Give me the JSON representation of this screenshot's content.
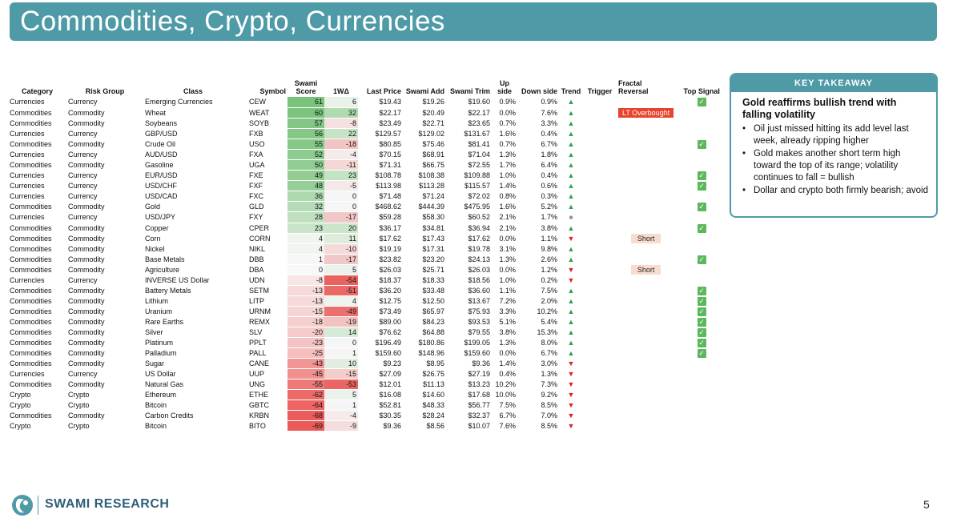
{
  "title": "Commodities, Crypto, Currencies",
  "columns": {
    "category": "Category",
    "risk_group": "Risk Group",
    "class": "Class",
    "symbol": "Symbol",
    "swami_score_1": "Swami",
    "swami_score_2": "Score",
    "delta": "1WΔ",
    "last_price": "Last Price",
    "swami_add": "Swami Add",
    "swami_trim": "Swami Trim",
    "up_side": "Up side",
    "down_side": "Down side",
    "trend": "Trend",
    "trigger": "Trigger",
    "fractal_1": "Fractal",
    "fractal_2": "Reversal",
    "top_signal": "Top Signal"
  },
  "rows": [
    {
      "category": "Currencies",
      "risk": "Currency",
      "cls": "Emerging Currencies",
      "sym": "CEW",
      "score": "61",
      "delta": "6",
      "last": "$19.43",
      "add": "$19.26",
      "trim": "$19.60",
      "up": "0.9%",
      "down": "0.9%",
      "trend": "up",
      "trigger": "",
      "fractal": "",
      "top": true
    },
    {
      "category": "Commodities",
      "risk": "Commodity",
      "cls": "Wheat",
      "sym": "WEAT",
      "score": "60",
      "delta": "32",
      "last": "$22.17",
      "add": "$20.49",
      "trim": "$22.17",
      "up": "0.0%",
      "down": "7.6%",
      "trend": "up",
      "trigger": "",
      "fractal": "LT Overbought",
      "top": false
    },
    {
      "category": "Commodities",
      "risk": "Commodity",
      "cls": "Soybeans",
      "sym": "SOYB",
      "score": "57",
      "delta": "-8",
      "last": "$23.49",
      "add": "$22.71",
      "trim": "$23.65",
      "up": "0.7%",
      "down": "3.3%",
      "trend": "up",
      "trigger": "",
      "fractal": "",
      "top": false
    },
    {
      "category": "Currencies",
      "risk": "Currency",
      "cls": "GBP/USD",
      "sym": "FXB",
      "score": "56",
      "delta": "22",
      "last": "$129.57",
      "add": "$129.02",
      "trim": "$131.67",
      "up": "1.6%",
      "down": "0.4%",
      "trend": "up",
      "trigger": "",
      "fractal": "",
      "top": false
    },
    {
      "category": "Commodities",
      "risk": "Commodity",
      "cls": "Crude Oil",
      "sym": "USO",
      "score": "55",
      "delta": "-18",
      "last": "$80.85",
      "add": "$75.46",
      "trim": "$81.41",
      "up": "0.7%",
      "down": "6.7%",
      "trend": "up",
      "trigger": "",
      "fractal": "",
      "top": true
    },
    {
      "category": "Currencies",
      "risk": "Currency",
      "cls": "AUD/USD",
      "sym": "FXA",
      "score": "52",
      "delta": "-4",
      "last": "$70.15",
      "add": "$68.91",
      "trim": "$71.04",
      "up": "1.3%",
      "down": "1.8%",
      "trend": "up",
      "trigger": "",
      "fractal": "",
      "top": false
    },
    {
      "category": "Commodities",
      "risk": "Commodity",
      "cls": "Gasoline",
      "sym": "UGA",
      "score": "50",
      "delta": "-11",
      "last": "$71.31",
      "add": "$66.75",
      "trim": "$72.55",
      "up": "1.7%",
      "down": "6.4%",
      "trend": "up",
      "trigger": "",
      "fractal": "",
      "top": false
    },
    {
      "category": "Currencies",
      "risk": "Currency",
      "cls": "EUR/USD",
      "sym": "FXE",
      "score": "49",
      "delta": "23",
      "last": "$108.78",
      "add": "$108.38",
      "trim": "$109.88",
      "up": "1.0%",
      "down": "0.4%",
      "trend": "up",
      "trigger": "",
      "fractal": "",
      "top": true
    },
    {
      "category": "Currencies",
      "risk": "Currency",
      "cls": "USD/CHF",
      "sym": "FXF",
      "score": "48",
      "delta": "-5",
      "last": "$113.98",
      "add": "$113.28",
      "trim": "$115.57",
      "up": "1.4%",
      "down": "0.6%",
      "trend": "up",
      "trigger": "",
      "fractal": "",
      "top": true
    },
    {
      "category": "Currencies",
      "risk": "Currency",
      "cls": "USD/CAD",
      "sym": "FXC",
      "score": "36",
      "delta": "0",
      "last": "$71.48",
      "add": "$71.24",
      "trim": "$72.02",
      "up": "0.8%",
      "down": "0.3%",
      "trend": "up",
      "trigger": "",
      "fractal": "",
      "top": false
    },
    {
      "category": "Commodities",
      "risk": "Commodity",
      "cls": "Gold",
      "sym": "GLD",
      "score": "32",
      "delta": "0",
      "last": "$468.62",
      "add": "$444.39",
      "trim": "$475.95",
      "up": "1.6%",
      "down": "5.2%",
      "trend": "up",
      "trigger": "",
      "fractal": "",
      "top": true
    },
    {
      "category": "Currencies",
      "risk": "Currency",
      "cls": "USD/JPY",
      "sym": "FXY",
      "score": "28",
      "delta": "-17",
      "last": "$59.28",
      "add": "$58.30",
      "trim": "$60.52",
      "up": "2.1%",
      "down": "1.7%",
      "trend": "flat",
      "trigger": "",
      "fractal": "",
      "top": false
    },
    {
      "category": "Commodities",
      "risk": "Commodity",
      "cls": "Copper",
      "sym": "CPER",
      "score": "23",
      "delta": "20",
      "last": "$36.17",
      "add": "$34.81",
      "trim": "$36.94",
      "up": "2.1%",
      "down": "3.8%",
      "trend": "up",
      "trigger": "",
      "fractal": "",
      "top": true
    },
    {
      "category": "Commodities",
      "risk": "Commodity",
      "cls": "Corn",
      "sym": "CORN",
      "score": "4",
      "delta": "11",
      "last": "$17.62",
      "add": "$17.43",
      "trim": "$17.62",
      "up": "0.0%",
      "down": "1.1%",
      "trend": "down",
      "trigger": "Short",
      "fractal": "",
      "top": false
    },
    {
      "category": "Commodities",
      "risk": "Commodity",
      "cls": "Nickel",
      "sym": "NIKL",
      "score": "4",
      "delta": "-10",
      "last": "$19.19",
      "add": "$17.31",
      "trim": "$19.78",
      "up": "3.1%",
      "down": "9.8%",
      "trend": "up",
      "trigger": "",
      "fractal": "",
      "top": false
    },
    {
      "category": "Commodities",
      "risk": "Commodity",
      "cls": "Base Metals",
      "sym": "DBB",
      "score": "1",
      "delta": "-17",
      "last": "$23.82",
      "add": "$23.20",
      "trim": "$24.13",
      "up": "1.3%",
      "down": "2.6%",
      "trend": "up",
      "trigger": "",
      "fractal": "",
      "top": true
    },
    {
      "category": "Commodities",
      "risk": "Commodity",
      "cls": "Agriculture",
      "sym": "DBA",
      "score": "0",
      "delta": "5",
      "last": "$26.03",
      "add": "$25.71",
      "trim": "$26.03",
      "up": "0.0%",
      "down": "1.2%",
      "trend": "down",
      "trigger": "Short",
      "fractal": "",
      "top": false
    },
    {
      "category": "Currencies",
      "risk": "Currency",
      "cls": "INVERSE US Dollar",
      "sym": "UDN",
      "score": "-8",
      "delta": "-54",
      "last": "$18.37",
      "add": "$18.33",
      "trim": "$18.56",
      "up": "1.0%",
      "down": "0.2%",
      "trend": "down",
      "trigger": "",
      "fractal": "",
      "top": false
    },
    {
      "category": "Commodities",
      "risk": "Commodity",
      "cls": "Battery Metals",
      "sym": "SETM",
      "score": "-13",
      "delta": "-51",
      "last": "$36.20",
      "add": "$33.48",
      "trim": "$36.60",
      "up": "1.1%",
      "down": "7.5%",
      "trend": "up",
      "trigger": "",
      "fractal": "",
      "top": true
    },
    {
      "category": "Commodities",
      "risk": "Commodity",
      "cls": "Lithium",
      "sym": "LITP",
      "score": "-13",
      "delta": "4",
      "last": "$12.75",
      "add": "$12.50",
      "trim": "$13.67",
      "up": "7.2%",
      "down": "2.0%",
      "trend": "up",
      "trigger": "",
      "fractal": "",
      "top": true
    },
    {
      "category": "Commodities",
      "risk": "Commodity",
      "cls": "Uranium",
      "sym": "URNM",
      "score": "-15",
      "delta": "-49",
      "last": "$73.49",
      "add": "$65.97",
      "trim": "$75.93",
      "up": "3.3%",
      "down": "10.2%",
      "trend": "up",
      "trigger": "",
      "fractal": "",
      "top": true
    },
    {
      "category": "Commodities",
      "risk": "Commodity",
      "cls": "Rare Earths",
      "sym": "REMX",
      "score": "-18",
      "delta": "-19",
      "last": "$89.00",
      "add": "$84.23",
      "trim": "$93.53",
      "up": "5.1%",
      "down": "5.4%",
      "trend": "up",
      "trigger": "",
      "fractal": "",
      "top": true
    },
    {
      "category": "Commodities",
      "risk": "Commodity",
      "cls": "Silver",
      "sym": "SLV",
      "score": "-20",
      "delta": "14",
      "last": "$76.62",
      "add": "$64.88",
      "trim": "$79.55",
      "up": "3.8%",
      "down": "15.3%",
      "trend": "up",
      "trigger": "",
      "fractal": "",
      "top": true
    },
    {
      "category": "Commodities",
      "risk": "Commodity",
      "cls": "Platinum",
      "sym": "PPLT",
      "score": "-23",
      "delta": "0",
      "last": "$196.49",
      "add": "$180.86",
      "trim": "$199.05",
      "up": "1.3%",
      "down": "8.0%",
      "trend": "up",
      "trigger": "",
      "fractal": "",
      "top": true
    },
    {
      "category": "Commodities",
      "risk": "Commodity",
      "cls": "Palladium",
      "sym": "PALL",
      "score": "-25",
      "delta": "1",
      "last": "$159.60",
      "add": "$148.96",
      "trim": "$159.60",
      "up": "0.0%",
      "down": "6.7%",
      "trend": "up",
      "trigger": "",
      "fractal": "",
      "top": true
    },
    {
      "category": "Commodities",
      "risk": "Commodity",
      "cls": "Sugar",
      "sym": "CANE",
      "score": "-43",
      "delta": "10",
      "last": "$9.23",
      "add": "$8.95",
      "trim": "$9.36",
      "up": "1.4%",
      "down": "3.0%",
      "trend": "down",
      "trigger": "",
      "fractal": "",
      "top": false
    },
    {
      "category": "Currencies",
      "risk": "Currency",
      "cls": "US Dollar",
      "sym": "UUP",
      "score": "-45",
      "delta": "-15",
      "last": "$27.09",
      "add": "$26.75",
      "trim": "$27.19",
      "up": "0.4%",
      "down": "1.3%",
      "trend": "down",
      "trigger": "",
      "fractal": "",
      "top": false
    },
    {
      "category": "Commodities",
      "risk": "Commodity",
      "cls": "Natural Gas",
      "sym": "UNG",
      "score": "-55",
      "delta": "-53",
      "last": "$12.01",
      "add": "$11.13",
      "trim": "$13.23",
      "up": "10.2%",
      "down": "7.3%",
      "trend": "down",
      "trigger": "",
      "fractal": "",
      "top": false
    },
    {
      "category": "Crypto",
      "risk": "Crypto",
      "cls": "Ethereum",
      "sym": "ETHE",
      "score": "-62",
      "delta": "5",
      "last": "$16.08",
      "add": "$14.60",
      "trim": "$17.68",
      "up": "10.0%",
      "down": "9.2%",
      "trend": "down",
      "trigger": "",
      "fractal": "",
      "top": false
    },
    {
      "category": "Crypto",
      "risk": "Crypto",
      "cls": "Bitcoin",
      "sym": "GBTC",
      "score": "-64",
      "delta": "1",
      "last": "$52.81",
      "add": "$48.33",
      "trim": "$56.77",
      "up": "7.5%",
      "down": "8.5%",
      "trend": "down",
      "trigger": "",
      "fractal": "",
      "top": false
    },
    {
      "category": "Commodities",
      "risk": "Commodity",
      "cls": "Carbon Credits",
      "sym": "KRBN",
      "score": "-68",
      "delta": "-4",
      "last": "$30.35",
      "add": "$28.24",
      "trim": "$32.37",
      "up": "6.7%",
      "down": "7.0%",
      "trend": "down",
      "trigger": "",
      "fractal": "",
      "top": false
    },
    {
      "category": "Crypto",
      "risk": "Crypto",
      "cls": "Bitcoin",
      "sym": "BITO",
      "score": "-69",
      "delta": "-9",
      "last": "$9.36",
      "add": "$8.56",
      "trim": "$10.07",
      "up": "7.6%",
      "down": "8.5%",
      "trend": "down",
      "trigger": "",
      "fractal": "",
      "top": false
    }
  ],
  "takeaway": {
    "header": "KEY TAKEAWAY",
    "headline": "Gold reaffirms bullish trend with falling volatility",
    "bullets": [
      "Oil just missed hitting its add level last week, already ripping higher",
      "Gold makes another short term high toward the top of its range; volatility continues to fall = bullish",
      "Dollar and crypto both firmly bearish; avoid"
    ]
  },
  "footer": {
    "brand": "SWAMI RESEARCH",
    "page_number": "5"
  },
  "colors": {
    "accent": "#4e9aa6",
    "trend_up": "#2aa24a",
    "trend_down": "#e02020",
    "overbought": "#e8432e",
    "short_tag": "#f8dccf",
    "check": "#5cb85c"
  }
}
